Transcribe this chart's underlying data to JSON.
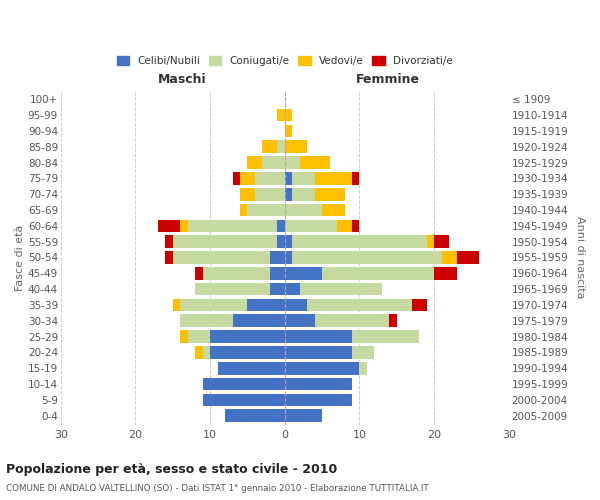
{
  "age_groups": [
    "0-4",
    "5-9",
    "10-14",
    "15-19",
    "20-24",
    "25-29",
    "30-34",
    "35-39",
    "40-44",
    "45-49",
    "50-54",
    "55-59",
    "60-64",
    "65-69",
    "70-74",
    "75-79",
    "80-84",
    "85-89",
    "90-94",
    "95-99",
    "100+"
  ],
  "birth_years": [
    "2005-2009",
    "2000-2004",
    "1995-1999",
    "1990-1994",
    "1985-1989",
    "1980-1984",
    "1975-1979",
    "1970-1974",
    "1965-1969",
    "1960-1964",
    "1955-1959",
    "1950-1954",
    "1945-1949",
    "1940-1944",
    "1935-1939",
    "1930-1934",
    "1925-1929",
    "1920-1924",
    "1915-1919",
    "1910-1914",
    "≤ 1909"
  ],
  "male": {
    "celibi": [
      8,
      11,
      11,
      9,
      10,
      10,
      7,
      5,
      2,
      2,
      2,
      1,
      1,
      0,
      0,
      0,
      0,
      0,
      0,
      0,
      0
    ],
    "coniugati": [
      0,
      0,
      0,
      0,
      1,
      3,
      7,
      9,
      10,
      9,
      13,
      14,
      12,
      5,
      4,
      4,
      3,
      1,
      0,
      0,
      0
    ],
    "vedovi": [
      0,
      0,
      0,
      0,
      1,
      1,
      0,
      1,
      0,
      0,
      0,
      0,
      1,
      1,
      2,
      2,
      2,
      2,
      0,
      1,
      0
    ],
    "divorziati": [
      0,
      0,
      0,
      0,
      0,
      0,
      0,
      0,
      0,
      1,
      1,
      1,
      3,
      0,
      0,
      1,
      0,
      0,
      0,
      0,
      0
    ]
  },
  "female": {
    "nubili": [
      5,
      9,
      9,
      10,
      9,
      9,
      4,
      3,
      2,
      5,
      1,
      1,
      0,
      0,
      1,
      1,
      0,
      0,
      0,
      0,
      0
    ],
    "coniugate": [
      0,
      0,
      0,
      1,
      3,
      9,
      10,
      14,
      11,
      15,
      20,
      18,
      7,
      5,
      3,
      3,
      2,
      0,
      0,
      0,
      0
    ],
    "vedove": [
      0,
      0,
      0,
      0,
      0,
      0,
      0,
      0,
      0,
      0,
      2,
      1,
      2,
      3,
      4,
      5,
      4,
      3,
      1,
      1,
      0
    ],
    "divorziate": [
      0,
      0,
      0,
      0,
      0,
      0,
      1,
      2,
      0,
      3,
      3,
      2,
      1,
      0,
      0,
      1,
      0,
      0,
      0,
      0,
      0
    ]
  },
  "colors": {
    "celibi": "#4472c4",
    "coniugati": "#c5d9a0",
    "vedovi": "#ffc000",
    "divorziati": "#cc0000"
  },
  "xlim": 30,
  "title": "Popolazione per età, sesso e stato civile - 2010",
  "subtitle": "COMUNE DI ANDALO VALTELLINO (SO) - Dati ISTAT 1° gennaio 2010 - Elaborazione TUTTITALIA.IT",
  "ylabel_left": "Fasce di età",
  "ylabel_right": "Anni di nascita",
  "label_maschi": "Maschi",
  "label_femmine": "Femmine",
  "legend_labels": [
    "Celibi/Nubili",
    "Coniugati/e",
    "Vedovi/e",
    "Divorziati/e"
  ],
  "bg_color": "#ffffff",
  "grid_color": "#cccccc"
}
